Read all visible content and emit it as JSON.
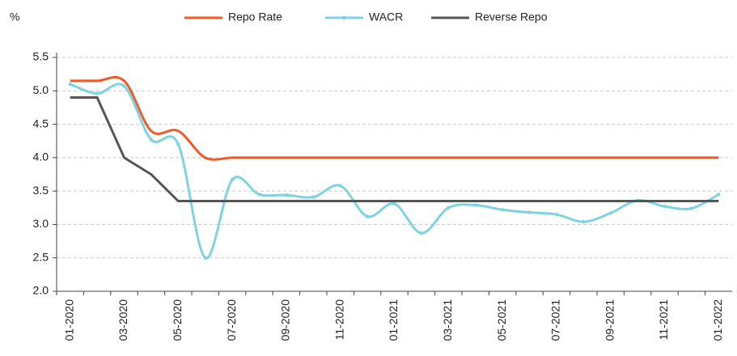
{
  "chart_data": {
    "type": "line",
    "y_label": "%",
    "categories": [
      "01-2020",
      null,
      "03-2020",
      null,
      "05-2020",
      null,
      "07-2020",
      null,
      "09-2020",
      null,
      "11-2020",
      null,
      "01-2021",
      null,
      "03-2021",
      null,
      "05-2021",
      null,
      "07-2021",
      null,
      "09-2021",
      null,
      "11-2021",
      null,
      "01-2022"
    ],
    "series": [
      {
        "name": "Repo Rate",
        "color": "#f05a28",
        "smooth": true,
        "markers": false,
        "values": [
          5.15,
          5.15,
          5.15,
          4.4,
          4.4,
          4.0,
          4.0,
          4.0,
          4.0,
          4.0,
          4.0,
          4.0,
          4.0,
          4.0,
          4.0,
          4.0,
          4.0,
          4.0,
          4.0,
          4.0,
          4.0,
          4.0,
          4.0,
          4.0,
          4.0
        ]
      },
      {
        "name": "WACR",
        "color": "#7fd3e0",
        "smooth": true,
        "markers": true,
        "values": [
          5.1,
          4.96,
          5.07,
          4.27,
          4.2,
          2.5,
          3.67,
          3.45,
          3.44,
          3.41,
          3.58,
          3.12,
          3.31,
          2.87,
          3.25,
          3.29,
          3.22,
          3.18,
          3.15,
          3.04,
          3.17,
          3.36,
          3.27,
          3.24,
          3.45
        ]
      },
      {
        "name": "Reverse Repo",
        "color": "#555555",
        "smooth": false,
        "markers": false,
        "values": [
          4.9,
          4.9,
          4.0,
          3.75,
          3.35,
          3.35,
          3.35,
          3.35,
          3.35,
          3.35,
          3.35,
          3.35,
          3.35,
          3.35,
          3.35,
          3.35,
          3.35,
          3.35,
          3.35,
          3.35,
          3.35,
          3.35,
          3.35,
          3.35,
          3.35
        ]
      }
    ],
    "ylim": [
      2,
      5.5
    ],
    "yticks": [
      {
        "value": 2,
        "label": "2.0"
      },
      2.5,
      {
        "value": 3,
        "label": "3.0"
      },
      3.5,
      {
        "value": 4,
        "label": "4.0"
      },
      4.5,
      {
        "value": 5,
        "label": "5.0"
      },
      5.5
    ],
    "grid": true,
    "legend": "top"
  }
}
